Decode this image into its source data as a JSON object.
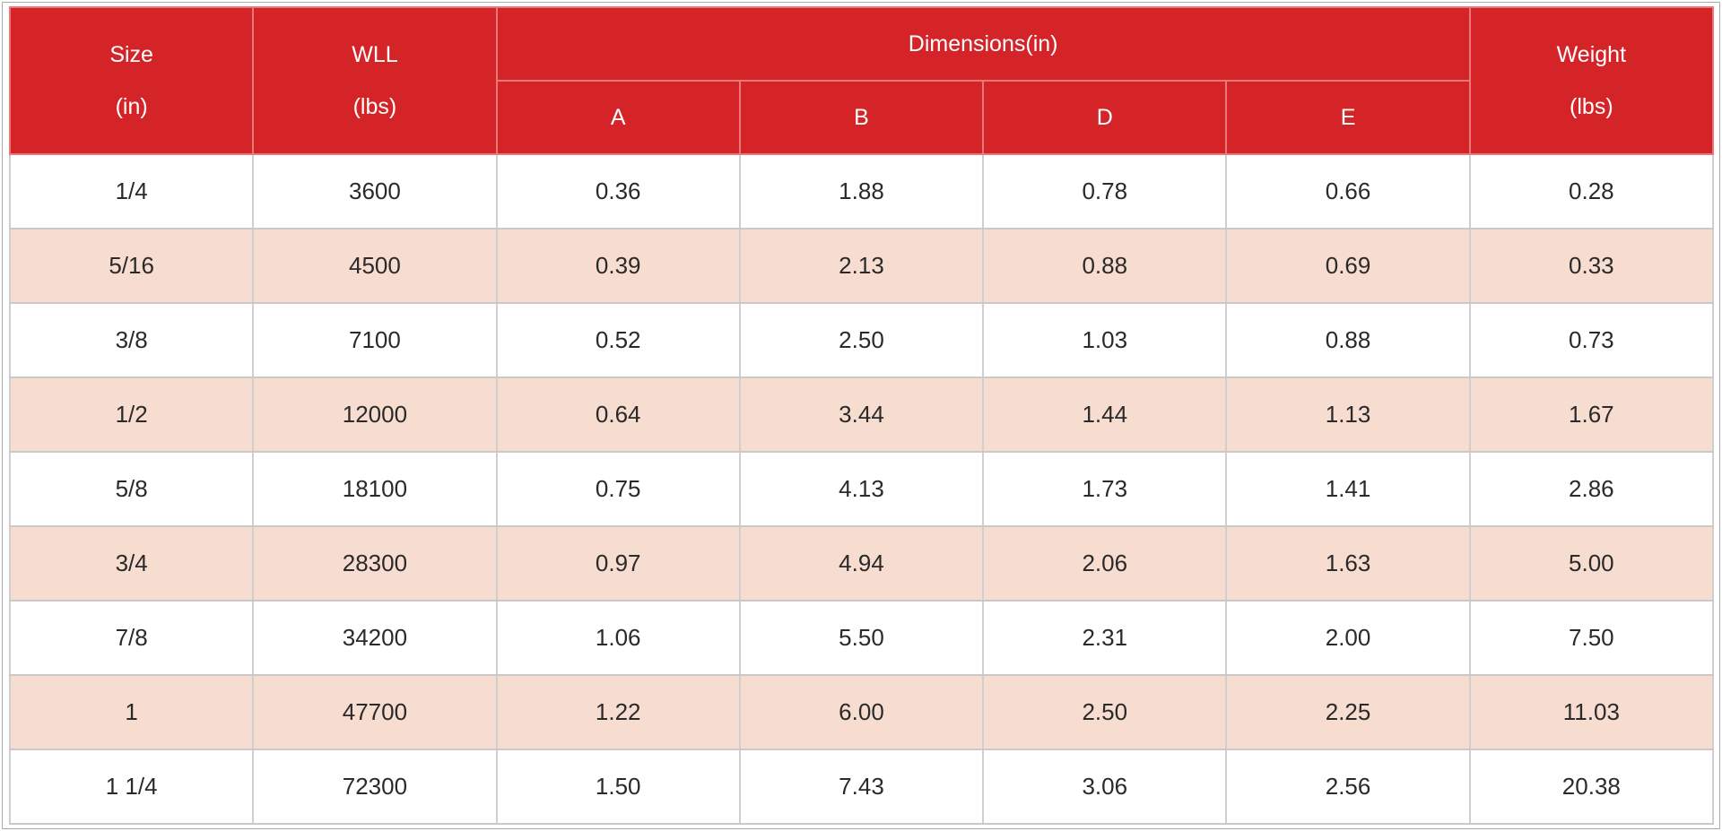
{
  "header": {
    "size": {
      "line1": "Size",
      "line2": "(in)"
    },
    "wll": {
      "line1": "WLL",
      "line2": "(lbs)"
    },
    "dimensions": "Dimensions(in)",
    "dim_cols": [
      "A",
      "B",
      "D",
      "E"
    ],
    "weight": {
      "line1": "Weight",
      "line2": "(lbs)"
    }
  },
  "rows": [
    [
      "1/4",
      "3600",
      "0.36",
      "1.88",
      "0.78",
      "0.66",
      "0.28"
    ],
    [
      "5/16",
      "4500",
      "0.39",
      "2.13",
      "0.88",
      "0.69",
      "0.33"
    ],
    [
      "3/8",
      "7100",
      "0.52",
      "2.50",
      "1.03",
      "0.88",
      "0.73"
    ],
    [
      "1/2",
      "12000",
      "0.64",
      "3.44",
      "1.44",
      "1.13",
      "1.67"
    ],
    [
      "5/8",
      "18100",
      "0.75",
      "4.13",
      "1.73",
      "1.41",
      "2.86"
    ],
    [
      "3/4",
      "28300",
      "0.97",
      "4.94",
      "2.06",
      "1.63",
      "5.00"
    ],
    [
      "7/8",
      "34200",
      "1.06",
      "5.50",
      "2.31",
      "2.00",
      "7.50"
    ],
    [
      "1",
      "47700",
      "1.22",
      "6.00",
      "2.50",
      "2.25",
      "11.03"
    ],
    [
      "1 1/4",
      "72300",
      "1.50",
      "7.43",
      "3.06",
      "2.56",
      "20.38"
    ]
  ],
  "colors": {
    "header_bg": "#d42428",
    "header_text": "#ffffff",
    "row_alt_bg": "#f7dcd0",
    "row_bg": "#ffffff"
  }
}
